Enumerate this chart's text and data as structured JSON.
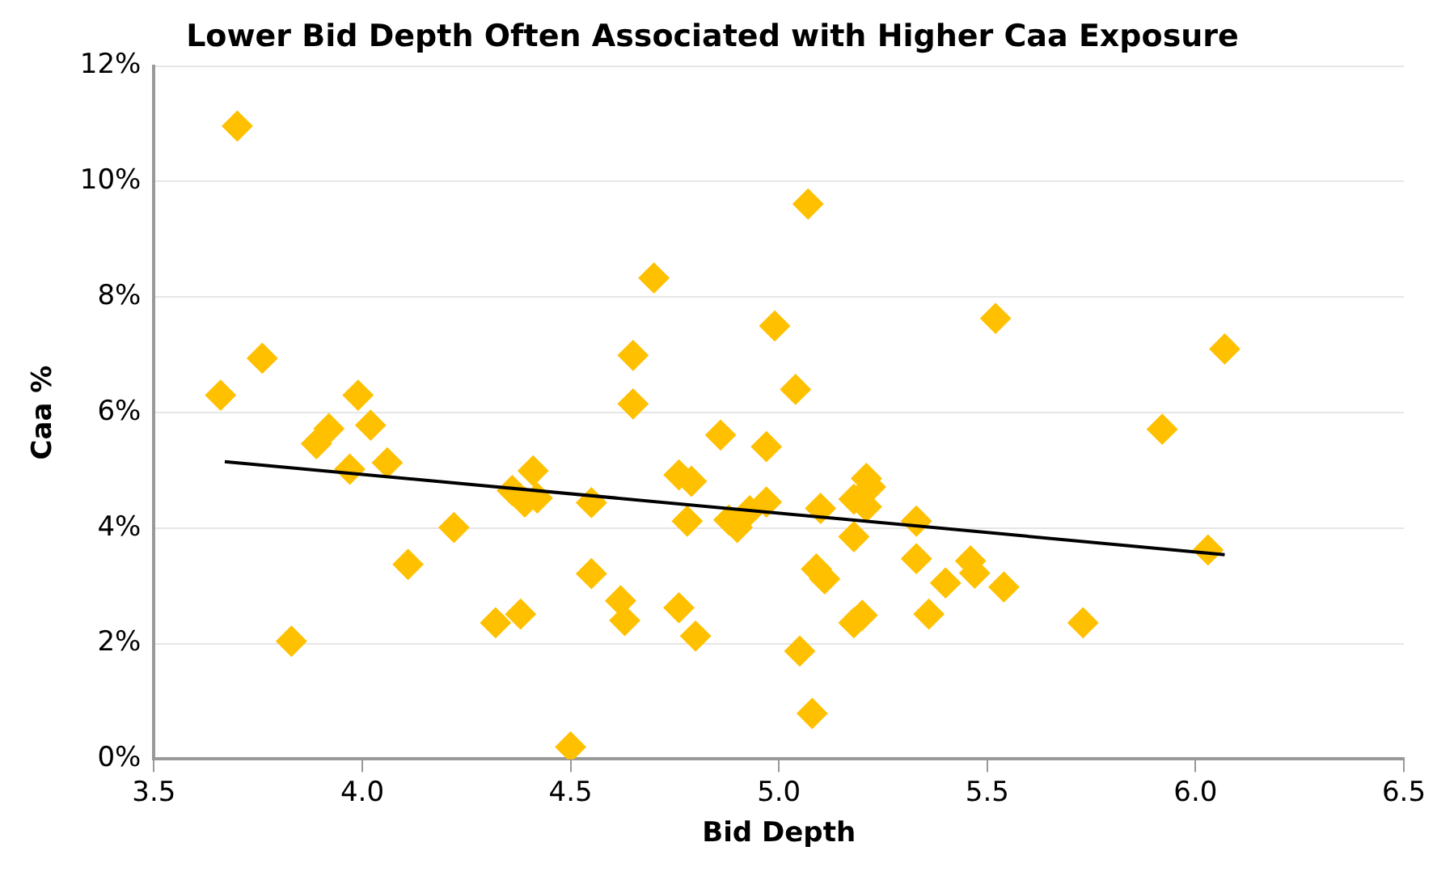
{
  "chart_data": {
    "type": "scatter",
    "title": "Lower Bid Depth Often Associated with Higher Caa Exposure",
    "xlabel": "Bid Depth",
    "ylabel": "Caa %",
    "marker": "diamond",
    "grid": "y",
    "legend": false,
    "xlim": [
      3.5,
      6.5
    ],
    "xticks": [
      3.5,
      {
        "value": 4,
        "label": "4.0"
      },
      4.5,
      {
        "value": 5,
        "label": "5.0"
      },
      5.5,
      {
        "value": 6,
        "label": "6.0"
      },
      6.5
    ],
    "ylim": [
      0,
      12
    ],
    "yticks": [
      {
        "value": 0,
        "label": "0%"
      },
      {
        "value": 2,
        "label": "2%"
      },
      {
        "value": 4,
        "label": "4%"
      },
      {
        "value": 6,
        "label": "6%"
      },
      {
        "value": 8,
        "label": "8%"
      },
      {
        "value": 10,
        "label": "10%"
      },
      {
        "value": 12,
        "label": "12%"
      }
    ],
    "series": [
      {
        "type": "scatter",
        "color": "#ffc000",
        "x": [
          3.7,
          3.66,
          3.76,
          3.99,
          4.7,
          4.65,
          4.65,
          4.99,
          5.07,
          5.04,
          5.52,
          6.07,
          3.92,
          3.89,
          4.02,
          3.97,
          4.06,
          4.22,
          4.11,
          3.83,
          4.36,
          4.41,
          4.39,
          4.42,
          4.55,
          4.86,
          4.97,
          4.76,
          4.79,
          4.78,
          4.9,
          4.88,
          4.93,
          4.97,
          4.55,
          4.32,
          4.38,
          4.62,
          4.63,
          4.76,
          4.8,
          4.5,
          5.1,
          5.21,
          5.22,
          5.18,
          5.21,
          5.18,
          5.33,
          5.33,
          5.46,
          5.47,
          5.4,
          5.54,
          5.09,
          5.11,
          5.2,
          5.18,
          5.36,
          5.73,
          5.05,
          5.08,
          5.92,
          6.03
        ],
        "values": [
          10.96,
          6.3,
          6.94,
          6.3,
          8.33,
          6.99,
          6.15,
          7.5,
          9.61,
          6.4,
          7.63,
          7.1,
          5.72,
          5.46,
          5.78,
          5.02,
          5.13,
          4.01,
          3.37,
          2.04,
          4.65,
          4.99,
          4.45,
          4.52,
          4.44,
          5.61,
          5.41,
          4.92,
          4.81,
          4.12,
          4.01,
          4.14,
          4.3,
          4.45,
          3.21,
          2.36,
          2.51,
          2.74,
          2.4,
          2.62,
          2.13,
          0.21,
          4.34,
          4.86,
          4.71,
          4.5,
          4.37,
          3.85,
          4.12,
          3.47,
          3.43,
          3.22,
          3.05,
          2.98,
          3.29,
          3.12,
          2.49,
          2.36,
          2.51,
          2.36,
          1.87,
          0.79,
          5.71,
          3.62
        ]
      },
      {
        "type": "line",
        "color": "#000000",
        "marker": "none",
        "x": [
          3.67,
          6.07
        ],
        "values": [
          5.15,
          3.54
        ]
      }
    ]
  }
}
